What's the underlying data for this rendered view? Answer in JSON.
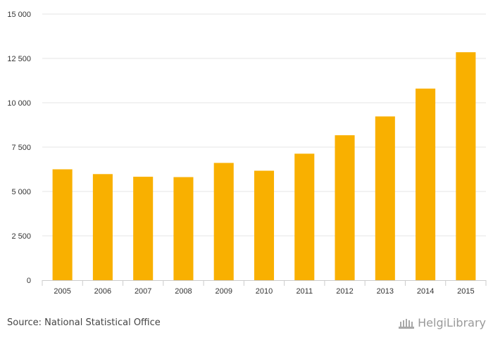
{
  "chart_data": {
    "type": "bar",
    "categories": [
      "2005",
      "2006",
      "2007",
      "2008",
      "2009",
      "2010",
      "2011",
      "2012",
      "2013",
      "2014",
      "2015"
    ],
    "values": [
      6250,
      5980,
      5830,
      5810,
      6610,
      6170,
      7130,
      8170,
      9230,
      10800,
      12850
    ],
    "ylim": [
      0,
      15000
    ],
    "yticks": [
      0,
      2500,
      5000,
      7500,
      10000,
      12500,
      15000
    ],
    "ytick_labels": [
      "0",
      "2 500",
      "5 000",
      "7 500",
      "10 000",
      "12 500",
      "15 000"
    ],
    "grid": true,
    "bar_color": "#f9b000",
    "title": "",
    "xlabel": "",
    "ylabel": ""
  },
  "footer": {
    "source": "Source: National Statistical Office",
    "brand": "HelgiLibrary"
  }
}
